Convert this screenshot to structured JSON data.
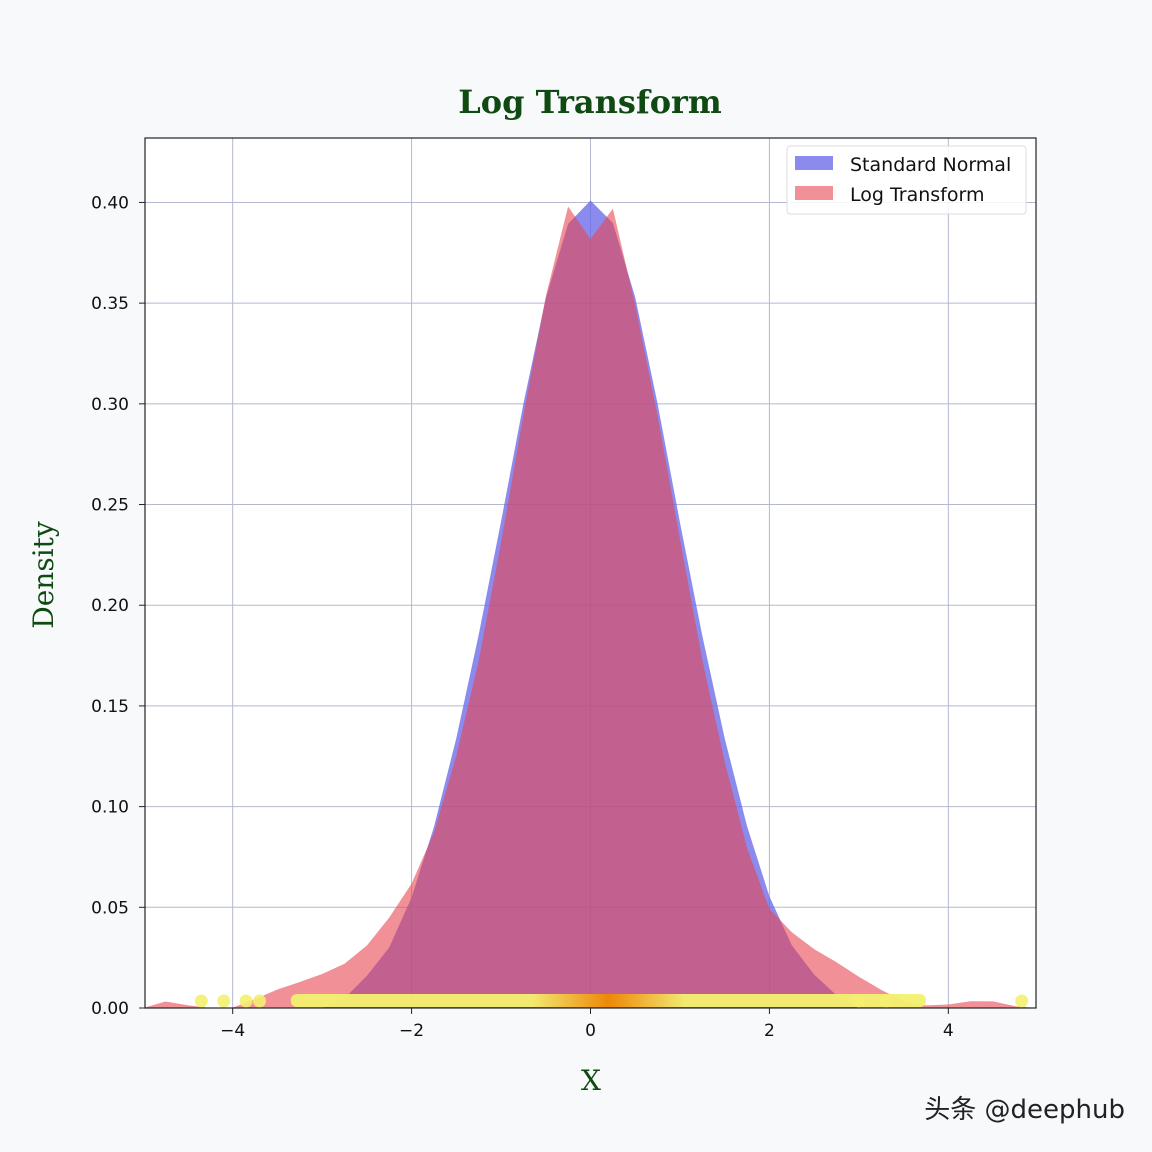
{
  "chart_data": {
    "type": "area",
    "title": "Log Transform",
    "xlabel": "X",
    "ylabel": "Density",
    "xlim": [
      -4.98,
      4.98
    ],
    "ylim": [
      0,
      0.432
    ],
    "grid": true,
    "legend_position": "top-right",
    "x_ticks": [
      -4,
      -2,
      0,
      2,
      4
    ],
    "x_tick_labels": [
      "−4",
      "−2",
      "0",
      "2",
      "4"
    ],
    "y_ticks": [
      0,
      0.05,
      0.1,
      0.15,
      0.2,
      0.25,
      0.3,
      0.35,
      0.4
    ],
    "y_tick_labels": [
      "0.00",
      "0.05",
      "0.10",
      "0.15",
      "0.20",
      "0.25",
      "0.30",
      "0.35",
      "0.40"
    ],
    "x": [
      -5,
      -4.75,
      -4.5,
      -4.25,
      -4,
      -3.75,
      -3.5,
      -3.25,
      -3,
      -2.75,
      -2.5,
      -2.25,
      -2,
      -1.75,
      -1.5,
      -1.25,
      -1,
      -0.75,
      -0.5,
      -0.25,
      0,
      0.25,
      0.5,
      0.75,
      1,
      1.25,
      1.5,
      1.75,
      2,
      2.25,
      2.5,
      2.75,
      3,
      3.25,
      3.5,
      3.75,
      4,
      4.25,
      4.5,
      4.75,
      5
    ],
    "series": [
      {
        "name": "Standard Normal",
        "color": "#6b6bea",
        "values": [
          0,
          0,
          0,
          0,
          0,
          0,
          0,
          0,
          0,
          0.004,
          0.018,
          0.033,
          0.056,
          0.088,
          0.131,
          0.184,
          0.243,
          0.303,
          0.354,
          0.388,
          0.398,
          0.388,
          0.354,
          0.303,
          0.243,
          0.184,
          0.131,
          0.088,
          0.056,
          0.034,
          0.019,
          0.006,
          0,
          0,
          0,
          0,
          0,
          0,
          0,
          0,
          0
        ]
      },
      {
        "name": "Log Transform",
        "color": "#ee6a6a",
        "values": [
          0,
          0.0005,
          0.001,
          0.002,
          0.003,
          0.005,
          0.007,
          0.01,
          0.016,
          0.024,
          0.034,
          0.046,
          0.06,
          0.084,
          0.124,
          0.174,
          0.234,
          0.296,
          0.352,
          0.395,
          0.38,
          0.398,
          0.352,
          0.296,
          0.232,
          0.17,
          0.12,
          0.08,
          0.052,
          0.04,
          0.029,
          0.02,
          0.013,
          0.009,
          0.006,
          0.004,
          0.002,
          0.001,
          0.0005,
          0.0003,
          0
        ]
      }
    ],
    "rug": {
      "band": [
        -3.35,
        3.75
      ],
      "outliers": [
        -4.35,
        -4.1,
        -3.85,
        -3.7,
        3.0,
        3.3,
        4.82
      ],
      "color_center": "#f08a00",
      "color_edge": "#f4f070"
    }
  },
  "watermark": "头条 @deephub"
}
